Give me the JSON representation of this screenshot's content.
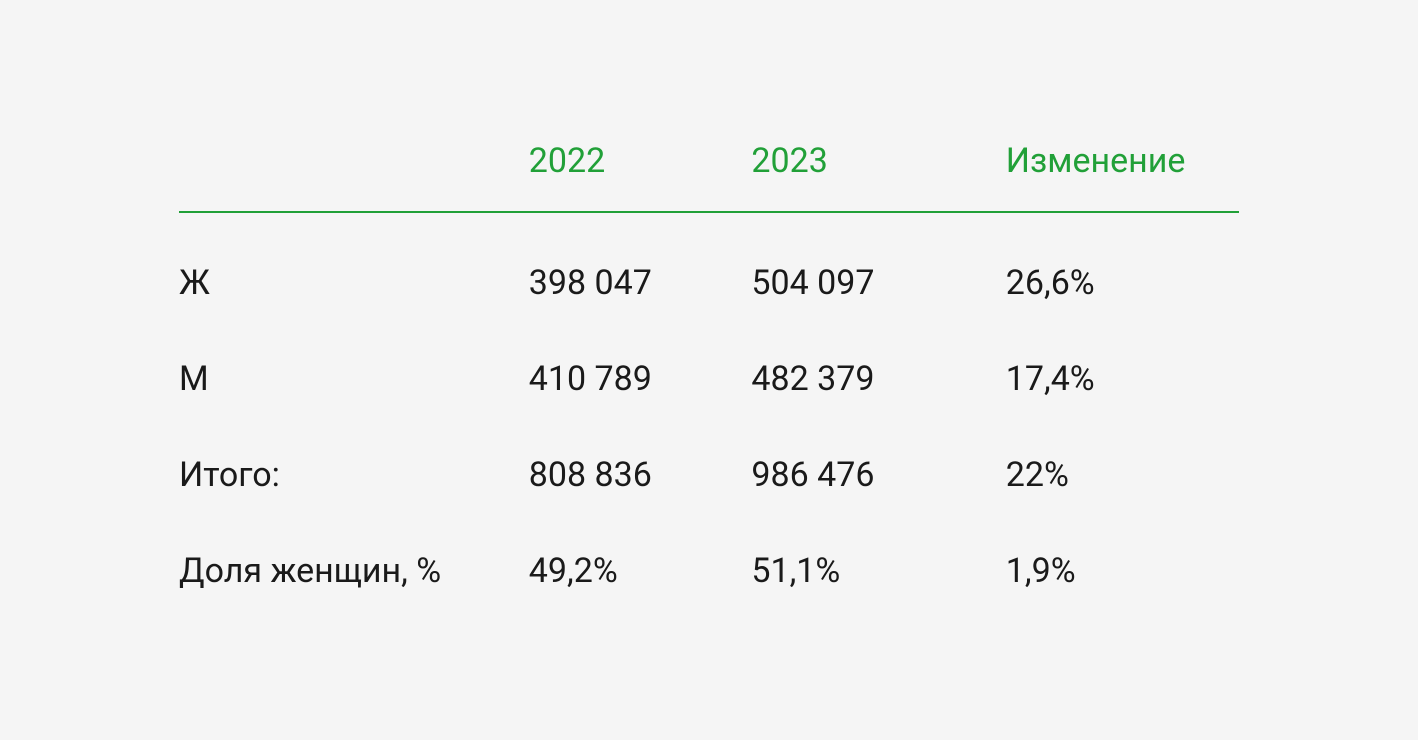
{
  "table": {
    "type": "table",
    "colors": {
      "background": "#f5f5f5",
      "header_text": "#21a038",
      "header_border": "#21a038",
      "body_text": "#1a1a1a"
    },
    "typography": {
      "header_fontsize": 34,
      "body_fontsize": 34,
      "header_weight": 400,
      "body_weight": 400
    },
    "columns": [
      {
        "key": "label",
        "header": ""
      },
      {
        "key": "y2022",
        "header": "2022"
      },
      {
        "key": "y2023",
        "header": "2023"
      },
      {
        "key": "change",
        "header": "Изменение"
      }
    ],
    "rows": [
      {
        "label": "Ж",
        "y2022": "398 047",
        "y2023": "504 097",
        "change": "26,6%"
      },
      {
        "label": "М",
        "y2022": "410 789",
        "y2023": "482 379",
        "change": "17,4%"
      },
      {
        "label": "Итого:",
        "y2022": "808 836",
        "y2023": "986 476",
        "change": "22%"
      },
      {
        "label": "Доля женщин, %",
        "y2022": "49,2%",
        "y2023": "51,1%",
        "change": "1,9%"
      }
    ]
  }
}
